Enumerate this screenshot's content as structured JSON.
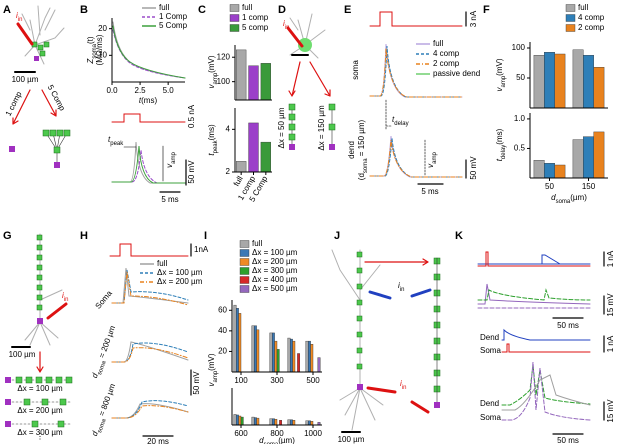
{
  "panels": {
    "A": {
      "label": "A",
      "i": "i",
      "in": "in",
      "scale": "100 µm",
      "one": "1 comp",
      "five": "5 Comp"
    },
    "B": {
      "label": "B",
      "legend": [
        {
          "name": "full",
          "color": "#a0a0a0",
          "dash": "solid"
        },
        {
          "name": "1 Comp",
          "color": "#9b4dca",
          "dash": "dashed"
        },
        {
          "name": "5 Comp",
          "color": "#3ca03c",
          "dash": "solid"
        }
      ],
      "ylabel": {
        "z": "Z",
        "sub": "soma",
        "t": "(t)",
        "unit": "(MΩ/ms)"
      },
      "xlabel": {
        "t": "t",
        "unit": "(ms)"
      },
      "xlim": [
        0,
        6.5
      ],
      "xticks": [
        {
          "value": 0,
          "label": "0.0"
        },
        {
          "value": 2.5,
          "label": "2.5"
        },
        {
          "value": 5,
          "label": "5.0"
        }
      ],
      "ylim": [
        0,
        24
      ],
      "yticks": [
        10,
        20
      ],
      "current": "0.5 nA",
      "tpeak": {
        "t": "t",
        "sub": "peak"
      },
      "vamp": {
        "v": "v",
        "sub": "amp"
      },
      "vscale": "50 mV",
      "tscale": "5 ms"
    },
    "C": {
      "label": "C",
      "legend": [
        "full",
        "1 comp",
        "5 comp"
      ],
      "colors": [
        "#a8a8a8",
        "#9b3fc9",
        "#3a9a3a"
      ],
      "categories": [
        "full",
        "1 comp",
        "5 Comp"
      ],
      "vamp": {
        "v": "v",
        "sub": "amp",
        "unit": "(mV)",
        "values": [
          126,
          113,
          115
        ],
        "ylim": [
          85,
          130
        ],
        "yticks": [
          100,
          120
        ]
      },
      "tpeak": {
        "t": "t",
        "sub": "peak",
        "unit": "(ms)",
        "values": [
          2.5,
          4.3,
          3.4
        ],
        "ylim": [
          2,
          5
        ],
        "yticks": [
          2,
          4
        ]
      }
    },
    "D": {
      "label": "D",
      "i": "i",
      "in": "in",
      "left": "Δx = 50 µm",
      "right": "Δx = 150 µm"
    },
    "E": {
      "label": "E",
      "current": "3 nA",
      "legend": [
        {
          "name": "full",
          "color": "#b9a6e0",
          "dash": "solid"
        },
        {
          "name": "4 comp",
          "color": "#2e7fb8",
          "dash": "dashed"
        },
        {
          "name": "2 comp",
          "color": "#e8821e",
          "dash": "dashdot"
        },
        {
          "name": "passive dend",
          "color": "#6fcf6f",
          "dash": "solid"
        }
      ],
      "soma": "soma",
      "dend": "dend",
      "dsoma": {
        "open": "(d",
        "sub": "soma",
        "rest": " = 150 µm)"
      },
      "tdelay": {
        "t": "t",
        "sub": "delay"
      },
      "vamp": {
        "v": "v",
        "sub": "amp"
      },
      "vscale": "50 mV",
      "tscale": "5 ms"
    },
    "F": {
      "label": "F",
      "categories": [
        "50",
        "150"
      ],
      "series": [
        {
          "name": "full",
          "color": "#a8a8a8",
          "vamp": [
            88,
            97
          ],
          "tdelay": [
            0.3,
            0.65
          ]
        },
        {
          "name": "4 comp",
          "color": "#2e7fb8",
          "vamp": [
            93,
            88
          ],
          "tdelay": [
            0.25,
            0.7
          ]
        },
        {
          "name": "2 comp",
          "color": "#e8821e",
          "vamp": [
            90,
            68
          ],
          "tdelay": [
            0.22,
            0.78
          ]
        }
      ],
      "vamp": {
        "v": "v",
        "sub": "amp",
        "unit": "(mV)",
        "ylim": [
          0,
          110
        ],
        "yticks": [
          50,
          100
        ]
      },
      "tdelay": {
        "t": "t",
        "sub": "delay",
        "unit": "(ms)",
        "ylim": [
          0,
          1.1
        ],
        "yticks": [
          0.5,
          {
            "value": 1,
            "label": "1.0"
          }
        ]
      },
      "xlabel": {
        "d": "d",
        "sub": "soma",
        "unit": "(µm)"
      }
    },
    "G": {
      "label": "G",
      "i": "i",
      "in": "in",
      "scale": "100 µm",
      "chains": [
        "Δx = 100 µm",
        "Δx = 200 µm",
        "Δx = 300 µm"
      ],
      "more": "⋮"
    },
    "H": {
      "label": "H",
      "current": "1nA",
      "legend": [
        {
          "name": "full",
          "color": "#a0a0a0",
          "dash": "solid"
        },
        {
          "name": "Δx = 100 µm",
          "color": "#2e7fb8",
          "dash": "dashed"
        },
        {
          "name": "Δx = 200 µm",
          "color": "#e8821e",
          "dash": "dashdot"
        }
      ],
      "soma": "Soma",
      "d200": {
        "d": "d",
        "sub": "soma",
        "rest": " = 200 µm"
      },
      "d800": {
        "d": "d",
        "sub": "soma",
        "rest": " = 800 µm"
      },
      "vscale": "50 mV",
      "tscale": "20 ms"
    },
    "I": {
      "label": "I",
      "series": [
        {
          "name": "full",
          "color": "#a8a8a8",
          "top": [
            65,
            45,
            38,
            33,
            30
          ],
          "bottom": [
            20,
            15,
            12,
            10,
            8
          ]
        },
        {
          "name": "Δx = 100 µm",
          "color": "#3a78b5",
          "top": [
            62,
            45,
            38,
            32,
            30
          ],
          "bottom": [
            19,
            14,
            12,
            10,
            8
          ]
        },
        {
          "name": "Δx = 200 µm",
          "color": "#f08a24",
          "top": [
            57,
            41,
            30,
            30,
            27
          ],
          "bottom": [
            17,
            13,
            11,
            9,
            7
          ]
        },
        {
          "name": "Δx = 300 µm",
          "color": "#2ca02c",
          "top": [
            null,
            null,
            22,
            null,
            null
          ],
          "bottom": [
            15,
            null,
            null,
            null,
            null
          ]
        },
        {
          "name": "Δx = 400 µm",
          "color": "#d62728",
          "top": [
            null,
            null,
            null,
            18,
            null
          ],
          "bottom": [
            null,
            null,
            9,
            null,
            null
          ]
        },
        {
          "name": "Δx = 500 µm",
          "color": "#9467bd",
          "top": [
            null,
            null,
            null,
            null,
            14
          ],
          "bottom": [
            null,
            null,
            null,
            null,
            5
          ]
        }
      ],
      "top": {
        "categories": [
          "100",
          null,
          "300",
          null,
          "500"
        ],
        "ylim": [
          0,
          70
        ],
        "yticks": [
          20,
          40,
          60
        ]
      },
      "bottom": {
        "categories": [
          "600",
          null,
          "800",
          null,
          "1000"
        ],
        "ylim": [
          0,
          70
        ]
      },
      "ylabel": {
        "v": "v",
        "sub": "amp",
        "unit": "(mV)"
      },
      "xlabel": {
        "d": "d",
        "sub": "soma",
        "unit": "(µm)"
      }
    },
    "J": {
      "label": "J",
      "i": "i",
      "in": "in",
      "scale": "100 µm"
    },
    "K": {
      "label": "K",
      "top": {
        "current": "1 nA",
        "tscale": "50 ms",
        "vscale": "15 mV"
      },
      "bottom": {
        "dend1": "Dend",
        "soma1": "Soma",
        "current": "1 nA",
        "dend2": "Dend",
        "soma2": "Soma",
        "vscale": "15 mV",
        "tscale": "50 ms"
      }
    }
  }
}
